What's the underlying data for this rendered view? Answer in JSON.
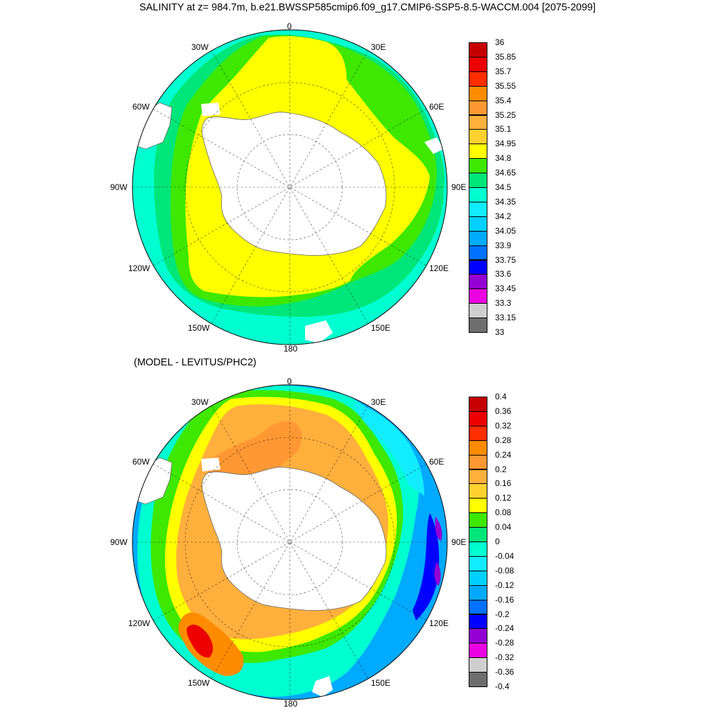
{
  "title": "SALINITY at z= 984.7m, b.e21.BWSSP585cmip6.f09_g17.CMIP6-SSP5-8.5-WACCM.004 [2075-2099]",
  "subtitle": "(MODEL - LEVITUS/PHC2)",
  "map_labels": {
    "top": "0",
    "l30w": "30W",
    "l30e": "30E",
    "l60w": "60W",
    "l60e": "60E",
    "l90w": "90W",
    "l90e": "90E",
    "l120w": "120W",
    "l120e": "120E",
    "l150w": "150W",
    "l150e": "150E",
    "bottom": "180"
  },
  "colorbar_top": {
    "colors": [
      "#6e6e6e",
      "#cfcfcf",
      "#ea00e2",
      "#9400d3",
      "#0000ff",
      "#0072ff",
      "#00aaff",
      "#00d0ff",
      "#12ecff",
      "#00ffd0",
      "#00e67a",
      "#3ee800",
      "#ffff00",
      "#ffd12e",
      "#ffaf3c",
      "#ff9832",
      "#ff8c00",
      "#ff2d00",
      "#ec0000",
      "#c60000"
    ],
    "labels": [
      "36",
      "35.85",
      "35.7",
      "35.55",
      "35.4",
      "35.25",
      "35.1",
      "34.95",
      "34.8",
      "34.65",
      "34.5",
      "34.35",
      "34.2",
      "34.05",
      "33.9",
      "33.75",
      "33.6",
      "33.45",
      "33.3",
      "33.15",
      "33"
    ]
  },
  "colorbar_bottom": {
    "colors": [
      "#6e6e6e",
      "#cfcfcf",
      "#ea00e2",
      "#9400d3",
      "#0000ff",
      "#0072ff",
      "#00aaff",
      "#00d0ff",
      "#12ecff",
      "#00ffd0",
      "#00e67a",
      "#3ee800",
      "#ffff00",
      "#ffd12e",
      "#ffaf3c",
      "#ff9832",
      "#ff8c00",
      "#ff2d00",
      "#ec0000",
      "#c60000"
    ],
    "labels": [
      "0.4",
      "0.36",
      "0.32",
      "0.28",
      "0.24",
      "0.2",
      "0.16",
      "0.12",
      "0.08",
      "0.04",
      "0",
      "-0.04",
      "-0.08",
      "-0.12",
      "-0.16",
      "-0.2",
      "-0.24",
      "-0.28",
      "-0.32",
      "-0.36",
      "-0.4"
    ]
  },
  "colors": {
    "land": "#ffffff",
    "yellow": "#ffff00",
    "green": "#3ee800",
    "teal": "#00e67a",
    "cyan": "#00ffd0",
    "orange": "#ffaf3c",
    "darkorange": "#ff8c00",
    "red": "#ec0000",
    "blue": "#0000ff",
    "lightblue": "#12ecff",
    "midblue": "#00aaff",
    "purple": "#9400d3"
  }
}
